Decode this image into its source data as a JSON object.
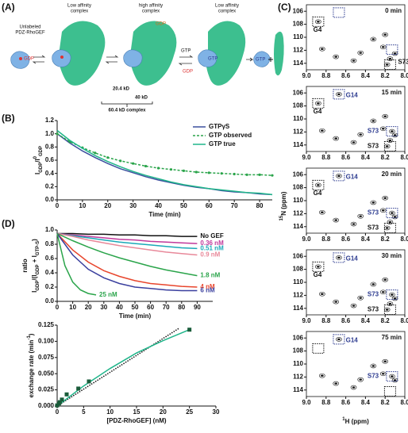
{
  "panel_labels": [
    "(A)",
    "(B)",
    "(C)",
    "(D)"
  ],
  "diagram": {
    "unlabeled": [
      "Unlabeled",
      "PDZ-RhoGEF"
    ],
    "low_affinity_1": [
      "Low affinity",
      "complex"
    ],
    "high_affinity": [
      "high affinity",
      "complex"
    ],
    "low_affinity_2": [
      "Low affinity",
      "complex"
    ],
    "gdp": "GDP",
    "gtp": "GTP",
    "mass_small": "20.4 kD",
    "mass_large": "40 kD",
    "mass_complex": "60.4 kD complex"
  },
  "panel_c": {
    "xlabel": [
      "1",
      "H (ppm)"
    ],
    "ylabel": [
      "15",
      "N (ppm)"
    ]
  },
  "chart_data": [
    {
      "type": "line",
      "x": [
        0,
        5,
        10,
        15,
        20,
        25,
        30,
        35,
        40,
        45,
        50,
        55,
        60,
        65,
        70,
        75,
        80,
        85
      ],
      "series": [
        {
          "name": "GTPγS",
          "color": "#3a4f9e",
          "style": "solid",
          "values": [
            1.0,
            0.86,
            0.74,
            0.64,
            0.55,
            0.47,
            0.41,
            0.35,
            0.3,
            0.26,
            0.22,
            0.19,
            0.17,
            0.14,
            0.12,
            0.11,
            0.09,
            0.08
          ]
        },
        {
          "name": "GTP observed",
          "color": "#2aa44a",
          "style": "dashed",
          "markers": true,
          "values": [
            1.0,
            0.88,
            0.79,
            0.71,
            0.64,
            0.59,
            0.55,
            0.51,
            0.48,
            0.46,
            0.44,
            0.42,
            0.41,
            0.4,
            0.39,
            0.38,
            0.38,
            0.37
          ]
        },
        {
          "name": "GTP true",
          "color": "#1fb58a",
          "style": "solid",
          "values": [
            1.05,
            0.9,
            0.78,
            0.67,
            0.58,
            0.5,
            0.43,
            0.37,
            0.32,
            0.27,
            0.23,
            0.2,
            0.17,
            0.15,
            0.13,
            0.11,
            0.1,
            0.08
          ]
        }
      ],
      "xlim": [
        0,
        85
      ],
      "xticks": [
        0,
        10,
        20,
        30,
        40,
        50,
        60,
        70,
        80
      ],
      "ylim": [
        0,
        1.2
      ],
      "yticks": [
        {
          "value": 0,
          "label": "0.0"
        },
        0.2,
        0.4,
        0.6,
        0.8,
        {
          "value": 1,
          "label": "1.0"
        },
        1.2
      ],
      "xlabel": "Time (min)",
      "ylabel": [
        "I",
        "GDP",
        "/I",
        "0",
        "GDP"
      ],
      "legend": "upper right"
    },
    {
      "type": "line",
      "series": [
        {
          "name": "No GEF",
          "color": "#111111",
          "style": "solid",
          "x": [
            0,
            10,
            20,
            30,
            40,
            50,
            60,
            70,
            80,
            90
          ],
          "values": [
            0.95,
            0.95,
            0.94,
            0.94,
            0.93,
            0.93,
            0.92,
            0.92,
            0.91,
            0.91
          ]
        },
        {
          "name": "0.36 nM",
          "color": "#c0399b",
          "style": "solid",
          "x": [
            0,
            10,
            20,
            30,
            40,
            50,
            60,
            70,
            80,
            90
          ],
          "values": [
            0.95,
            0.93,
            0.91,
            0.89,
            0.87,
            0.86,
            0.84,
            0.83,
            0.82,
            0.81
          ]
        },
        {
          "name": "0.51 nM",
          "color": "#1aa9b8",
          "style": "solid",
          "x": [
            0,
            10,
            20,
            30,
            40,
            50,
            60,
            70,
            80,
            90
          ],
          "values": [
            0.95,
            0.92,
            0.89,
            0.86,
            0.83,
            0.81,
            0.79,
            0.77,
            0.75,
            0.74
          ]
        },
        {
          "name": "0.9 nM",
          "color": "#e8899a",
          "style": "solid",
          "x": [
            0,
            10,
            20,
            30,
            40,
            50,
            60,
            70,
            80,
            90
          ],
          "values": [
            0.95,
            0.91,
            0.86,
            0.82,
            0.78,
            0.75,
            0.72,
            0.69,
            0.67,
            0.65
          ]
        },
        {
          "name": "1.8 nM",
          "color": "#2aa44a",
          "style": "solid",
          "x": [
            0,
            10,
            20,
            30,
            40,
            50,
            60,
            70,
            80,
            90
          ],
          "values": [
            0.95,
            0.85,
            0.76,
            0.68,
            0.61,
            0.55,
            0.49,
            0.44,
            0.4,
            0.36
          ]
        },
        {
          "name": "4 nM",
          "color": "#e8452c",
          "style": "solid",
          "x": [
            0,
            10,
            20,
            30,
            40,
            50,
            60,
            70,
            80,
            90
          ],
          "values": [
            0.95,
            0.72,
            0.55,
            0.43,
            0.35,
            0.29,
            0.25,
            0.23,
            0.21,
            0.2
          ]
        },
        {
          "name": "6 nM",
          "color": "#3a3f9e",
          "style": "solid",
          "x": [
            0,
            10,
            20,
            30,
            40,
            50,
            60,
            70,
            80,
            90
          ],
          "values": [
            0.95,
            0.65,
            0.45,
            0.33,
            0.25,
            0.2,
            0.18,
            0.16,
            0.15,
            0.15
          ]
        },
        {
          "name": "25 nM",
          "color": "#2aa44a",
          "style": "solid",
          "x": [
            0,
            5,
            10,
            15,
            20,
            25
          ],
          "values": [
            0.95,
            0.5,
            0.27,
            0.16,
            0.11,
            0.09
          ]
        }
      ],
      "xlim": [
        0,
        100
      ],
      "xticks": [
        0,
        10,
        20,
        30,
        40,
        50,
        60,
        70,
        80,
        90
      ],
      "ylim": [
        0,
        1
      ],
      "yticks": [
        {
          "value": 0,
          "label": "0.0"
        },
        0.2,
        0.4,
        0.6,
        0.8,
        {
          "value": 1,
          "label": "1.0"
        }
      ],
      "xlabel": "Time (min)",
      "ylabel": "ratio",
      "ylabel_formula": [
        "I",
        "GDP",
        "/(I",
        "GDP",
        " + I",
        "GTP-S",
        ")"
      ],
      "labels_at_end": true
    },
    {
      "type": "scatter",
      "series": [
        {
          "color": "#111111",
          "style": "dotted",
          "x": [
            0,
            23
          ],
          "values": [
            0,
            0.12
          ]
        },
        {
          "color": "#1fb58a",
          "style": "solid",
          "x": [
            0,
            5,
            10,
            15,
            20,
            25
          ],
          "values": [
            0,
            0.031,
            0.058,
            0.082,
            0.101,
            0.118
          ]
        },
        {
          "color": "#1a5c3a",
          "style": "markers",
          "x": [
            0,
            0.36,
            0.51,
            0.9,
            1.8,
            4,
            6,
            25
          ],
          "values": [
            0.001,
            0.004,
            0.006,
            0.01,
            0.018,
            0.027,
            0.038,
            0.118
          ]
        }
      ],
      "xlim": [
        0,
        30
      ],
      "xticks": [
        0,
        5,
        10,
        15,
        20,
        25,
        30
      ],
      "ylim": [
        0,
        0.125
      ],
      "yticks": [
        {
          "value": 0,
          "label": "0.000"
        },
        0.025,
        {
          "value": 0.05,
          "label": "0.050"
        },
        0.075,
        {
          "value": 0.1,
          "label": "0.100"
        },
        0.125
      ],
      "xlabel": "[PDZ-RhoGEF] (nM)",
      "ylabel": [
        "exchange rate (min",
        "-1",
        ")"
      ]
    },
    {
      "type": "spectrum",
      "title": "0 min",
      "peaks": {
        "x": [
          8.88,
          8.84,
          8.52,
          8.45,
          8.32,
          8.22,
          8.18,
          8.15,
          8.1,
          8.2,
          8.7
        ],
        "y": [
          107.6,
          111.8,
          113.6,
          112.4,
          110.3,
          111.5,
          114.2,
          113.3,
          112.5,
          109.6,
          113.0
        ]
      },
      "boxes": [
        {
          "x": 8.88,
          "y": 107.6,
          "color": "#111111"
        },
        {
          "x": 8.15,
          "y": 114.2,
          "color": "#111111"
        },
        {
          "x": 8.67,
          "y": 106.2,
          "color": "#2b3a8f"
        },
        {
          "x": 8.13,
          "y": 111.9,
          "color": "#2b3a8f"
        }
      ],
      "annotations": [
        {
          "text": "G4",
          "x": 8.93,
          "y": 108.9,
          "color": "#111111"
        },
        {
          "text": "S73",
          "x": 8.07,
          "y": 113.8,
          "color": "#111111"
        }
      ],
      "xlim": [
        9,
        8
      ],
      "xticks": [
        {
          "value": 9,
          "label": "9.0"
        },
        8.8,
        8.6,
        8.4,
        8.2,
        {
          "value": 8,
          "label": "8.0"
        }
      ],
      "ylim": [
        115,
        105
      ],
      "yticks": [
        106,
        108,
        110,
        112,
        114
      ]
    },
    {
      "type": "spectrum",
      "title": "15 min",
      "peaks": {
        "x": [
          8.88,
          8.84,
          8.52,
          8.45,
          8.32,
          8.22,
          8.18,
          8.15,
          8.1,
          8.2,
          8.7,
          8.67,
          8.13
        ],
        "y": [
          107.6,
          111.8,
          113.6,
          112.4,
          110.3,
          111.5,
          114.2,
          113.3,
          112.5,
          109.6,
          113.0,
          106.2,
          111.9
        ]
      },
      "boxes": [
        {
          "x": 8.88,
          "y": 107.6,
          "color": "#111111"
        },
        {
          "x": 8.15,
          "y": 114.2,
          "color": "#111111"
        },
        {
          "x": 8.67,
          "y": 106.2,
          "color": "#2b3a8f"
        },
        {
          "x": 8.13,
          "y": 111.9,
          "color": "#2b3a8f"
        }
      ],
      "annotations": [
        {
          "text": "G4",
          "x": 8.93,
          "y": 108.9,
          "color": "#111111"
        },
        {
          "text": "G14",
          "x": 8.6,
          "y": 106.4,
          "color": "#2b3a8f"
        },
        {
          "text": "S73",
          "x": 8.38,
          "y": 111.9,
          "color": "#2b3a8f"
        },
        {
          "text": "S73",
          "x": 8.38,
          "y": 114.2,
          "color": "#111111"
        }
      ],
      "xlim": [
        9,
        8
      ],
      "xticks": [
        {
          "value": 9,
          "label": "9.0"
        },
        8.8,
        8.6,
        8.4,
        8.2,
        {
          "value": 8,
          "label": "8.0"
        }
      ],
      "ylim": [
        115,
        105
      ],
      "yticks": [
        106,
        108,
        110,
        112,
        114
      ]
    },
    {
      "type": "spectrum",
      "title": "20 min",
      "peaks": {
        "x": [
          8.88,
          8.84,
          8.52,
          8.45,
          8.32,
          8.22,
          8.18,
          8.15,
          8.1,
          8.2,
          8.7,
          8.67,
          8.13
        ],
        "y": [
          107.6,
          111.8,
          113.6,
          112.4,
          110.3,
          111.5,
          114.2,
          113.3,
          112.5,
          109.6,
          113.0,
          106.2,
          111.9
        ]
      },
      "boxes": [
        {
          "x": 8.88,
          "y": 107.6,
          "color": "#111111"
        },
        {
          "x": 8.15,
          "y": 114.2,
          "color": "#111111"
        },
        {
          "x": 8.67,
          "y": 106.2,
          "color": "#2b3a8f"
        },
        {
          "x": 8.13,
          "y": 111.9,
          "color": "#2b3a8f"
        }
      ],
      "annotations": [
        {
          "text": "G4",
          "x": 8.93,
          "y": 108.9,
          "color": "#111111"
        },
        {
          "text": "G14",
          "x": 8.6,
          "y": 106.4,
          "color": "#2b3a8f"
        },
        {
          "text": "S73",
          "x": 8.38,
          "y": 111.9,
          "color": "#2b3a8f"
        },
        {
          "text": "S73",
          "x": 8.38,
          "y": 114.2,
          "color": "#111111"
        }
      ],
      "xlim": [
        9,
        8
      ],
      "xticks": [
        {
          "value": 9,
          "label": "9.0"
        },
        8.8,
        8.6,
        8.4,
        8.2,
        {
          "value": 8,
          "label": "8.0"
        }
      ],
      "ylim": [
        115,
        105
      ],
      "yticks": [
        106,
        108,
        110,
        112,
        114
      ]
    },
    {
      "type": "spectrum",
      "title": "30 min",
      "peaks": {
        "x": [
          8.88,
          8.84,
          8.52,
          8.45,
          8.32,
          8.22,
          8.18,
          8.15,
          8.1,
          8.2,
          8.7,
          8.67,
          8.13
        ],
        "y": [
          107.6,
          111.8,
          113.6,
          112.4,
          110.3,
          111.5,
          114.2,
          113.3,
          112.5,
          109.6,
          113.0,
          106.2,
          111.9
        ]
      },
      "boxes": [
        {
          "x": 8.88,
          "y": 107.6,
          "color": "#111111"
        },
        {
          "x": 8.15,
          "y": 114.2,
          "color": "#111111"
        },
        {
          "x": 8.67,
          "y": 106.2,
          "color": "#2b3a8f"
        },
        {
          "x": 8.13,
          "y": 111.9,
          "color": "#2b3a8f"
        }
      ],
      "annotations": [
        {
          "text": "G4",
          "x": 8.93,
          "y": 108.9,
          "color": "#111111"
        },
        {
          "text": "G14",
          "x": 8.6,
          "y": 106.4,
          "color": "#2b3a8f"
        },
        {
          "text": "S73",
          "x": 8.38,
          "y": 111.9,
          "color": "#2b3a8f"
        },
        {
          "text": "S73",
          "x": 8.38,
          "y": 114.2,
          "color": "#111111"
        }
      ],
      "xlim": [
        9,
        8
      ],
      "xticks": [
        {
          "value": 9,
          "label": "9.0"
        },
        8.8,
        8.6,
        8.4,
        8.2,
        {
          "value": 8,
          "label": "8.0"
        }
      ],
      "ylim": [
        115,
        105
      ],
      "yticks": [
        106,
        108,
        110,
        112,
        114
      ]
    },
    {
      "type": "spectrum",
      "title": "75 min",
      "peaks": {
        "x": [
          8.84,
          8.52,
          8.45,
          8.32,
          8.22,
          8.1,
          8.2,
          8.7,
          8.67,
          8.13
        ],
        "y": [
          111.8,
          113.6,
          112.4,
          110.3,
          111.5,
          112.5,
          109.6,
          113.0,
          106.2,
          111.9
        ]
      },
      "boxes": [
        {
          "x": 8.88,
          "y": 107.6,
          "color": "#111111"
        },
        {
          "x": 8.15,
          "y": 114.2,
          "color": "#111111"
        },
        {
          "x": 8.67,
          "y": 106.2,
          "color": "#2b3a8f"
        },
        {
          "x": 8.13,
          "y": 111.9,
          "color": "#2b3a8f"
        }
      ],
      "annotations": [
        {
          "text": "G14",
          "x": 8.6,
          "y": 106.4,
          "color": "#2b3a8f"
        },
        {
          "text": "S73",
          "x": 8.38,
          "y": 111.9,
          "color": "#2b3a8f"
        }
      ],
      "xlim": [
        9,
        8
      ],
      "xticks": [
        {
          "value": 9,
          "label": "9.0"
        },
        8.8,
        8.6,
        8.4,
        8.2,
        {
          "value": 8,
          "label": "8.0"
        }
      ],
      "ylim": [
        115,
        105
      ],
      "yticks": [
        106,
        108,
        110,
        112,
        114
      ]
    }
  ]
}
